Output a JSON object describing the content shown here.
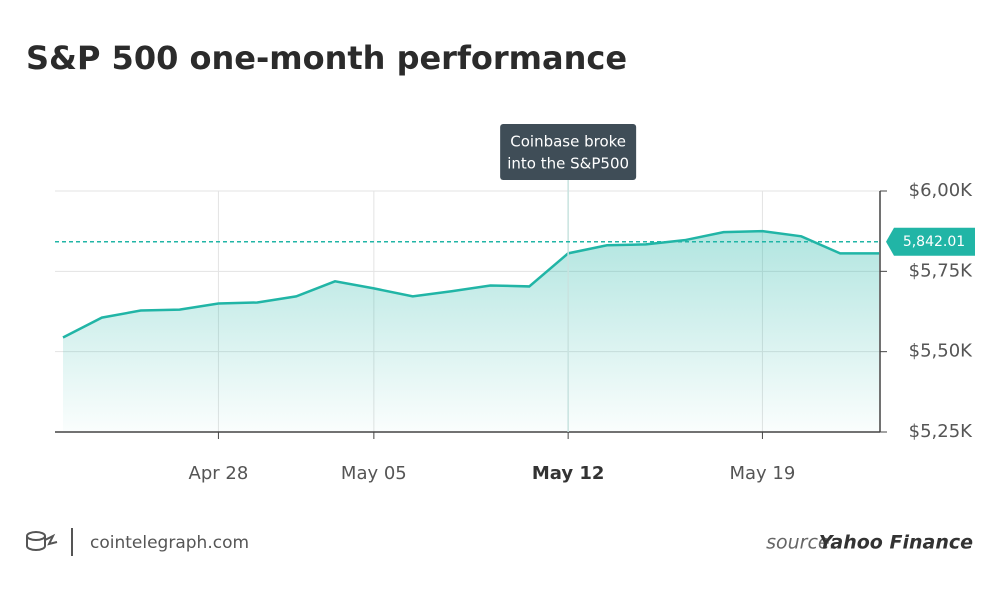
{
  "chart_data": {
    "type": "line",
    "title": "S&P 500 one-month performance",
    "categories": [
      null,
      null,
      null,
      null,
      "Apr 28",
      null,
      null,
      null,
      "May 05",
      null,
      null,
      null,
      null,
      "May 12",
      null,
      null,
      null,
      null,
      "May 19",
      null,
      null,
      null
    ],
    "series": [
      {
        "name": "S&P 500",
        "color": "#21b5a6",
        "values": [
          5544,
          5606,
          5628,
          5631,
          5650,
          5653,
          5672,
          5719,
          5697,
          5672,
          5688,
          5706,
          5703,
          5806,
          5831,
          5834,
          5847,
          5872,
          5875,
          5859,
          5806,
          5806
        ]
      }
    ],
    "ylim": [
      5250,
      6000
    ],
    "yticks": [
      {
        "value": 5250,
        "label": "$5,25K"
      },
      {
        "value": 5500,
        "label": "$5,50K"
      },
      {
        "value": 5750,
        "label": "$5,75K"
      },
      {
        "value": 6000,
        "label": "$6,00K"
      }
    ],
    "grid": true,
    "current": {
      "value": 5842.01,
      "label": "5,842.01"
    },
    "annotation": {
      "lines": [
        "Coinbase broke",
        "into the S&P500"
      ],
      "category_index": 13
    },
    "footer": {
      "site": "cointelegraph.com",
      "source_prefix": "source:",
      "source": "Yahoo Finance"
    }
  }
}
